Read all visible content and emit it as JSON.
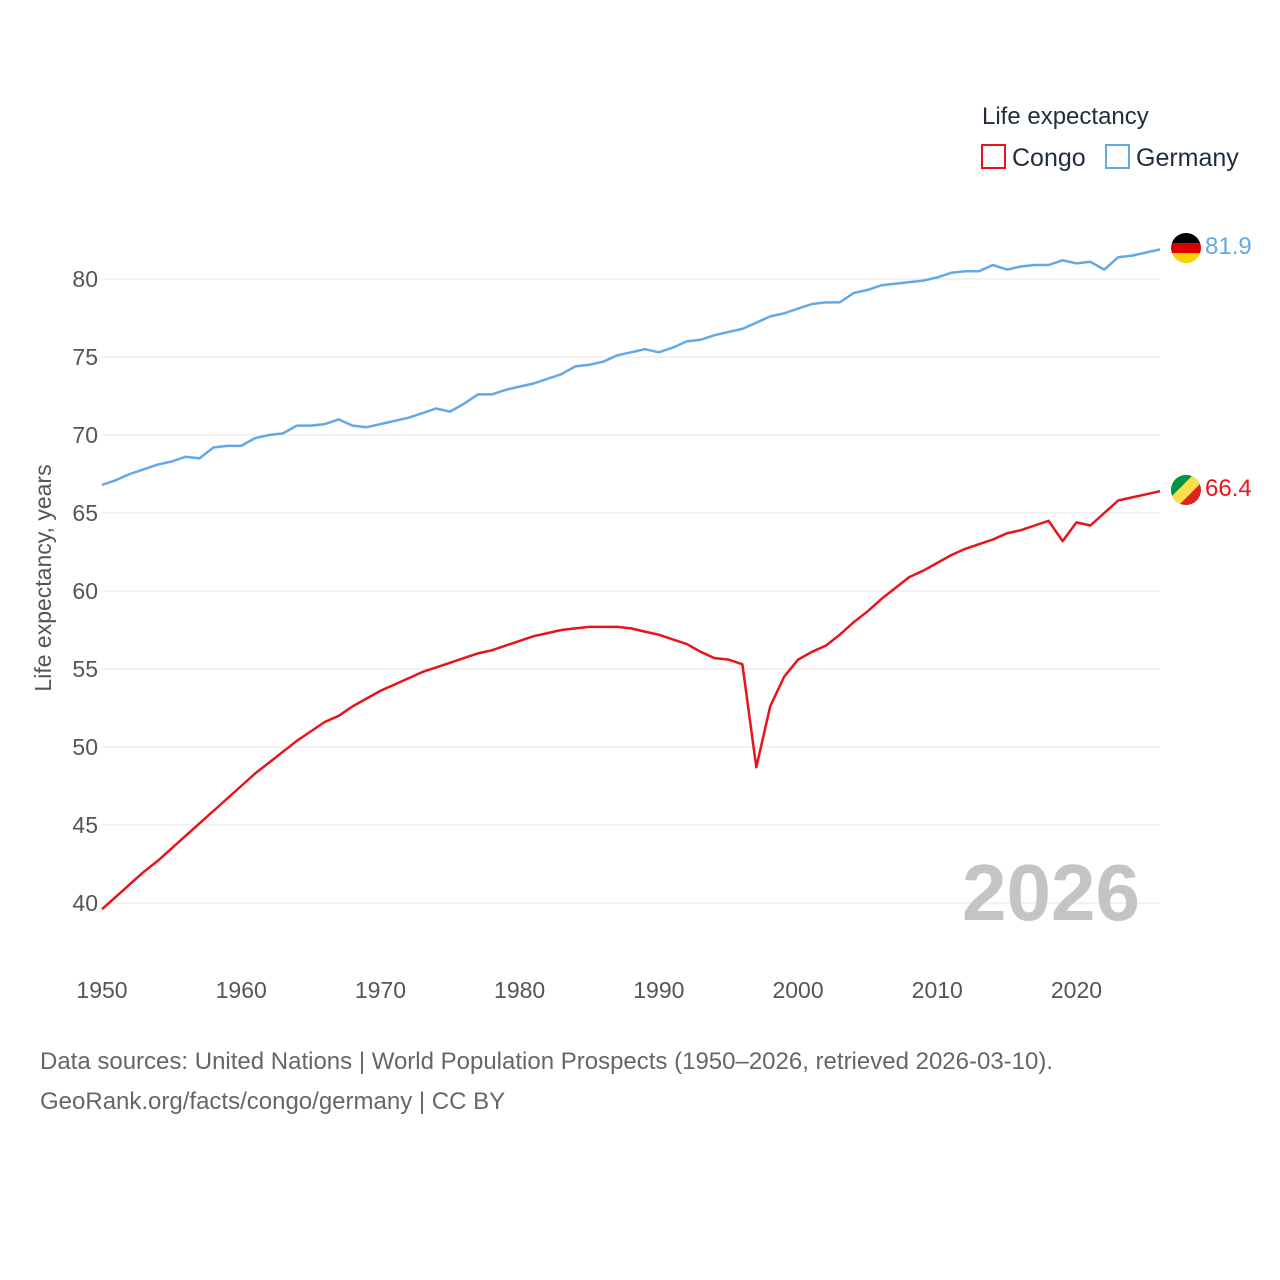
{
  "chart_data": {
    "type": "line",
    "ylabel": "Life expectancy, years",
    "xlim": [
      1950,
      2026
    ],
    "ylim": [
      37,
      83
    ],
    "yticks": [
      40,
      45,
      50,
      55,
      60,
      65,
      70,
      75,
      80
    ],
    "xticks": [
      1950,
      1960,
      1970,
      1980,
      1990,
      2000,
      2010,
      2020
    ],
    "legend": {
      "title": "Life expectancy",
      "position": "top-right"
    },
    "year_label": "2026",
    "x_start": 1950,
    "series": [
      {
        "name": "Congo",
        "color": "#e8141a",
        "end_label": "66.4",
        "flag": "congo-flag",
        "values": [
          39.6,
          40.4,
          41.2,
          42.0,
          42.7,
          43.5,
          44.3,
          45.1,
          45.9,
          46.7,
          47.5,
          48.3,
          49.0,
          49.7,
          50.4,
          51.0,
          51.6,
          52.0,
          52.6,
          53.1,
          53.6,
          54.0,
          54.4,
          54.8,
          55.1,
          55.4,
          55.7,
          56.0,
          56.2,
          56.5,
          56.8,
          57.1,
          57.3,
          57.5,
          57.6,
          57.7,
          57.7,
          57.7,
          57.6,
          57.4,
          57.2,
          56.9,
          56.6,
          56.1,
          55.7,
          55.6,
          55.3,
          48.7,
          52.6,
          54.5,
          55.6,
          56.1,
          56.5,
          57.2,
          58.0,
          58.7,
          59.5,
          60.2,
          60.9,
          61.3,
          61.8,
          62.3,
          62.7,
          63.0,
          63.3,
          63.7,
          63.9,
          64.2,
          64.5,
          63.2,
          64.4,
          64.2,
          65.0,
          65.8,
          66.0,
          66.2,
          66.4
        ]
      },
      {
        "name": "Germany",
        "color": "#64a8e6",
        "end_label": "81.9",
        "flag": "germany-flag",
        "values": [
          66.8,
          67.1,
          67.5,
          67.8,
          68.1,
          68.3,
          68.6,
          68.5,
          69.2,
          69.3,
          69.3,
          69.8,
          70.0,
          70.1,
          70.6,
          70.6,
          70.7,
          71.0,
          70.6,
          70.5,
          70.7,
          70.9,
          71.1,
          71.4,
          71.7,
          71.5,
          72.0,
          72.6,
          72.6,
          72.9,
          73.1,
          73.3,
          73.6,
          73.9,
          74.4,
          74.5,
          74.7,
          75.1,
          75.3,
          75.5,
          75.3,
          75.6,
          76.0,
          76.1,
          76.4,
          76.6,
          76.8,
          77.2,
          77.6,
          77.8,
          78.1,
          78.4,
          78.5,
          78.5,
          79.1,
          79.3,
          79.6,
          79.7,
          79.8,
          79.9,
          80.1,
          80.4,
          80.5,
          80.5,
          80.9,
          80.6,
          80.8,
          80.9,
          80.9,
          81.2,
          81.0,
          81.1,
          80.6,
          81.4,
          81.5,
          81.7,
          81.9
        ]
      }
    ]
  },
  "footer": {
    "line1": "Data sources: United Nations | World Population Prospects (1950–2026, retrieved 2026-03-10).",
    "line2": "GeoRank.org/facts/congo/germany | CC BY"
  }
}
